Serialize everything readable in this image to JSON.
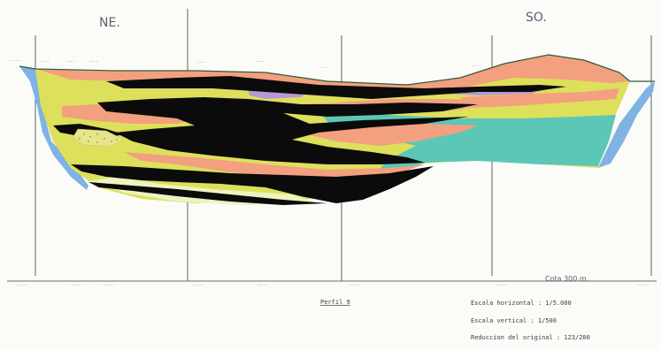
{
  "header": {
    "left_label": "NE.",
    "right_label": "SO."
  },
  "legend": {
    "title": "Perfil 9",
    "horizontal_scale": "Escala horizontal :  1/5.000",
    "vertical_scale": "Escala vertical :       1/500",
    "reduction": "Reduccion del original : 123/200"
  },
  "annotations": {
    "cota": "Cota 300 m."
  },
  "colors": {
    "coal": "#0b0b0b",
    "salmon": "#f2a07f",
    "yellow": "#dde05a",
    "teal": "#5cc7b7",
    "lilac": "#b69ad4",
    "water": "#7fb3e3",
    "pale": "#eef3c0"
  }
}
